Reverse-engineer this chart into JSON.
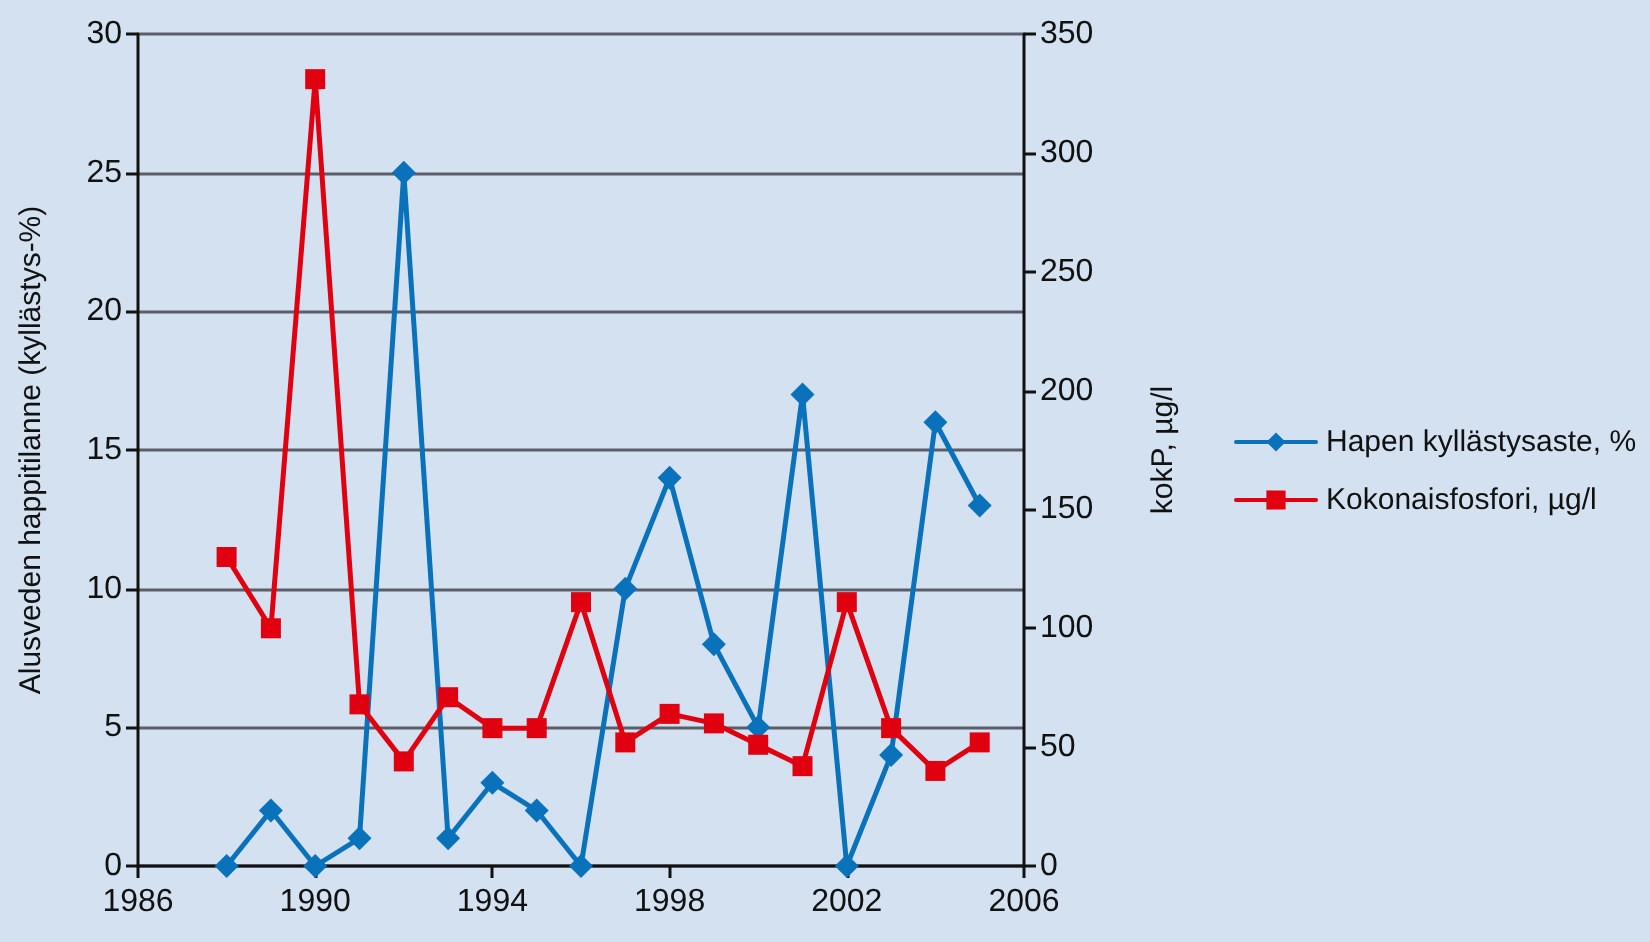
{
  "chart_data": {
    "type": "line",
    "ylabel": "Alusveden happitilanne (kyllästys-%)",
    "y2label": "kokP, µg/l",
    "x": [
      1988,
      1989,
      1990,
      1991,
      1992,
      1993,
      1994,
      1995,
      1996,
      1997,
      1998,
      1999,
      2000,
      2001,
      2002,
      2003,
      2004,
      2005
    ],
    "series": [
      {
        "name": "Hapen kyllästysaste, %",
        "color": "#0a72ba",
        "marker": "diamond",
        "values": [
          0,
          2,
          0,
          1,
          25,
          1,
          3,
          2,
          0,
          10,
          14,
          8,
          5,
          17,
          0,
          4,
          16,
          13
        ]
      },
      {
        "name": "Kokonaisfosfori, µg/l",
        "color": "#e0000f",
        "marker": "square",
        "axis": "y2",
        "values": [
          130,
          100,
          331,
          68,
          44,
          71,
          58,
          58,
          111,
          52,
          64,
          60,
          51,
          42,
          111,
          58,
          40,
          52
        ]
      }
    ],
    "xlim": [
      1986,
      2006
    ],
    "xticks": [
      1986,
      1990,
      1994,
      1998,
      2002,
      2006
    ],
    "ylim": [
      0,
      30
    ],
    "yticks": [
      0,
      5,
      10,
      15,
      20,
      25,
      30
    ],
    "y2lim": [
      0,
      350
    ],
    "y2ticks": [
      0,
      50,
      100,
      150,
      200,
      250,
      300,
      350
    ],
    "grid": "y",
    "legend": "right",
    "line_style": "solid"
  }
}
